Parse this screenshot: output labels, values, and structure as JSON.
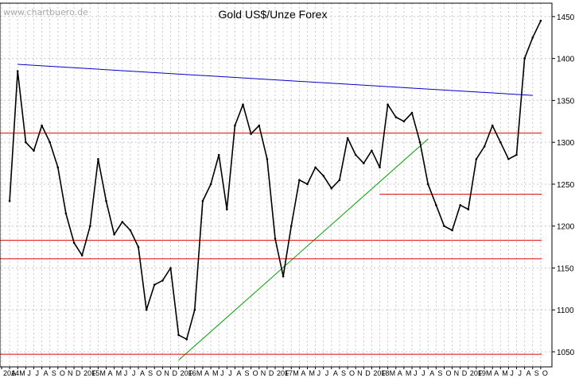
{
  "watermark": "www.chartbuero.de",
  "chart_data": {
    "type": "line",
    "title": "Gold US$/Unze Forex",
    "xlabel": "",
    "ylabel": "",
    "ylim": [
      1032,
      1466
    ],
    "y_ticks": [
      1050,
      1100,
      1150,
      1200,
      1250,
      1300,
      1350,
      1400,
      1450
    ],
    "grid": true,
    "x_tick_labels": [
      "2014",
      "A",
      "M",
      "J",
      "J",
      "A",
      "S",
      "O",
      "N",
      "D",
      "2015",
      "F",
      "M",
      "A",
      "M",
      "J",
      "J",
      "A",
      "S",
      "O",
      "N",
      "D",
      "2016",
      "F",
      "M",
      "A",
      "M",
      "J",
      "J",
      "A",
      "S",
      "O",
      "N",
      "D",
      "2017",
      "F",
      "M",
      "A",
      "M",
      "J",
      "J",
      "A",
      "S",
      "O",
      "N",
      "D",
      "2018",
      "F",
      "M",
      "A",
      "M",
      "J",
      "J",
      "A",
      "S",
      "O",
      "N",
      "D",
      "2019",
      "F",
      "M",
      "A",
      "M",
      "J",
      "J",
      "A",
      "S",
      "O"
    ],
    "series": [
      {
        "x": [
          "2014-02",
          "2014-03",
          "2014-04",
          "2014-05",
          "2014-06",
          "2014-07",
          "2014-08",
          "2014-09",
          "2014-10",
          "2014-11",
          "2014-12",
          "2015-01",
          "2015-02",
          "2015-03",
          "2015-04",
          "2015-05",
          "2015-06",
          "2015-07",
          "2015-08",
          "2015-09",
          "2015-10",
          "2015-11",
          "2015-12",
          "2016-01",
          "2016-02",
          "2016-03",
          "2016-04",
          "2016-05",
          "2016-06",
          "2016-07",
          "2016-08",
          "2016-09",
          "2016-10",
          "2016-11",
          "2016-12",
          "2017-01",
          "2017-02",
          "2017-03",
          "2017-04",
          "2017-05",
          "2017-06",
          "2017-07",
          "2017-08",
          "2017-09",
          "2017-10",
          "2017-11",
          "2017-12",
          "2018-01",
          "2018-02",
          "2018-03",
          "2018-04",
          "2018-05",
          "2018-06",
          "2018-07",
          "2018-08",
          "2018-09",
          "2018-10",
          "2018-11",
          "2018-12",
          "2019-01",
          "2019-02",
          "2019-03",
          "2019-04",
          "2019-05",
          "2019-06",
          "2019-07",
          "2019-08"
        ],
        "values": [
          1230,
          1385,
          1300,
          1290,
          1320,
          1300,
          1270,
          1215,
          1180,
          1165,
          1200,
          1280,
          1230,
          1190,
          1205,
          1195,
          1175,
          1100,
          1130,
          1135,
          1150,
          1070,
          1065,
          1100,
          1230,
          1250,
          1285,
          1220,
          1320,
          1345,
          1310,
          1320,
          1280,
          1185,
          1140,
          1200,
          1255,
          1250,
          1270,
          1260,
          1245,
          1255,
          1305,
          1285,
          1275,
          1290,
          1270,
          1345,
          1330,
          1325,
          1335,
          1300,
          1250,
          1225,
          1200,
          1195,
          1225,
          1220,
          1280,
          1295,
          1320,
          1300,
          1280,
          1285,
          1400,
          1425,
          1445
        ]
      }
    ],
    "reference_lines": [
      {
        "kind": "resistance",
        "color": "#0000c8",
        "from": [
          "2014-03",
          1393
        ],
        "to": [
          "2019-07",
          1356
        ]
      },
      {
        "kind": "support",
        "color": "#00a000",
        "from": [
          "2015-11",
          1040
        ],
        "to": [
          "2018-06",
          1304
        ]
      },
      {
        "kind": "horizontal",
        "color": "#e00000",
        "y": 1311
      },
      {
        "kind": "horizontal",
        "color": "#e00000",
        "y": 1238,
        "from": "2017-12"
      },
      {
        "kind": "horizontal",
        "color": "#e00000",
        "y": 1183
      },
      {
        "kind": "horizontal",
        "color": "#e00000",
        "y": 1161
      },
      {
        "kind": "horizontal",
        "color": "#e00000",
        "y": 1047
      }
    ],
    "colors": {
      "price": "#000000",
      "grid": "#c8c8c8",
      "background": "#ffffff"
    }
  }
}
